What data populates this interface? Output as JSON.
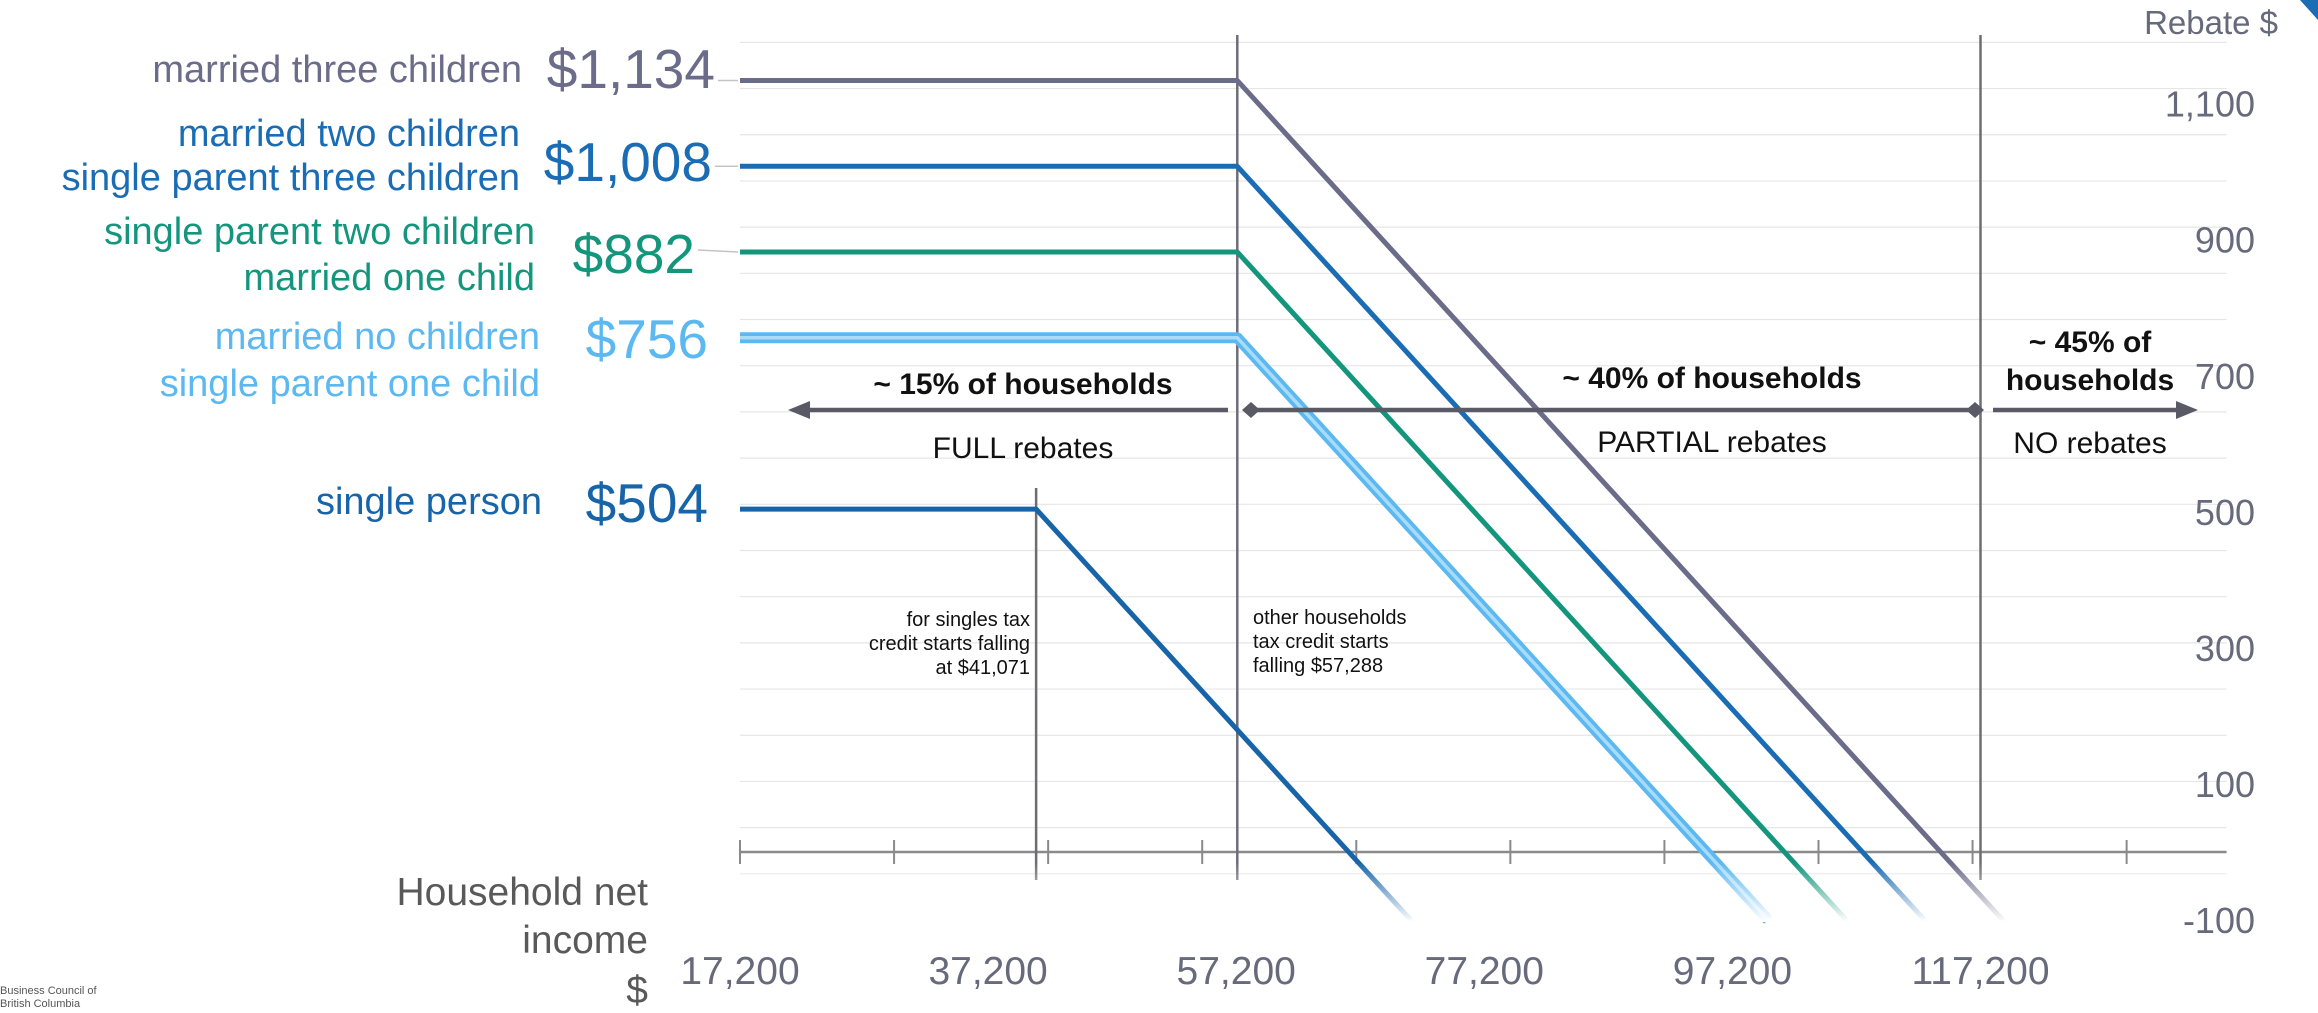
{
  "chart_data": {
    "type": "line",
    "ylabel": "Rebate $",
    "xlabel_lines": [
      "Household net",
      "income",
      "$"
    ],
    "x_ticks": [
      17200,
      37200,
      57200,
      77200,
      97200,
      117200
    ],
    "x_tick_labels": [
      "17,200",
      "37,200",
      "57,200",
      "77,200",
      "97,200",
      "117,200"
    ],
    "y_ticks": [
      1100,
      900,
      700,
      500,
      300,
      100,
      -100
    ],
    "y_tick_labels": [
      "1,100",
      "900",
      "700",
      "500",
      "300",
      "100",
      "-100"
    ],
    "xlim": [
      17200,
      137200
    ],
    "ylim": [
      -100,
      1200
    ],
    "grid": true,
    "series": [
      {
        "labels": [
          "married three children"
        ],
        "value_label": "$1,134",
        "color": "#6b6b8a",
        "points": [
          [
            17200,
            1134
          ],
          [
            57288,
            1134
          ],
          [
            113988,
            0
          ],
          [
            118988,
            -100
          ]
        ]
      },
      {
        "labels": [
          "married two children",
          "single parent three children"
        ],
        "value_label": "$1,008",
        "color": "#1a6cb4",
        "points": [
          [
            17200,
            1008
          ],
          [
            57288,
            1008
          ],
          [
            107688,
            0
          ],
          [
            112688,
            -100
          ]
        ]
      },
      {
        "labels": [
          "single parent two children",
          "married one child"
        ],
        "value_label": "$882",
        "color": "#13967c",
        "points": [
          [
            17200,
            882
          ],
          [
            57288,
            882
          ],
          [
            101388,
            0
          ],
          [
            106388,
            -100
          ]
        ]
      },
      {
        "labels": [
          "married no children",
          "single parent one child"
        ],
        "value_label": "$756",
        "color": "#5bb8f0",
        "points": [
          [
            17200,
            756
          ],
          [
            57288,
            756
          ],
          [
            95088,
            0
          ],
          [
            100088,
            -100
          ]
        ]
      },
      {
        "labels": [
          "single person"
        ],
        "value_label": "$504",
        "color": "#1764a8",
        "points": [
          [
            17200,
            504
          ],
          [
            41071,
            504
          ],
          [
            66271,
            0
          ],
          [
            71271,
            -100
          ]
        ]
      }
    ],
    "vlines": [
      41071,
      57288,
      117200
    ],
    "annotations": {
      "singles_note": [
        "for singles tax",
        "credit starts falling",
        "at $41,071"
      ],
      "others_note": [
        "other households",
        "tax credit starts",
        "falling $57,288"
      ]
    },
    "regions": [
      {
        "title_lines": [
          "~ 15% of households"
        ],
        "subtitle": "FULL rebates"
      },
      {
        "title_lines": [
          "~ 40% of households"
        ],
        "subtitle": "PARTIAL rebates"
      },
      {
        "title_lines": [
          "~ 45% of",
          "households"
        ],
        "subtitle": "NO rebates"
      }
    ]
  },
  "logo_text": [
    "Business Council of",
    "British Columbia"
  ]
}
